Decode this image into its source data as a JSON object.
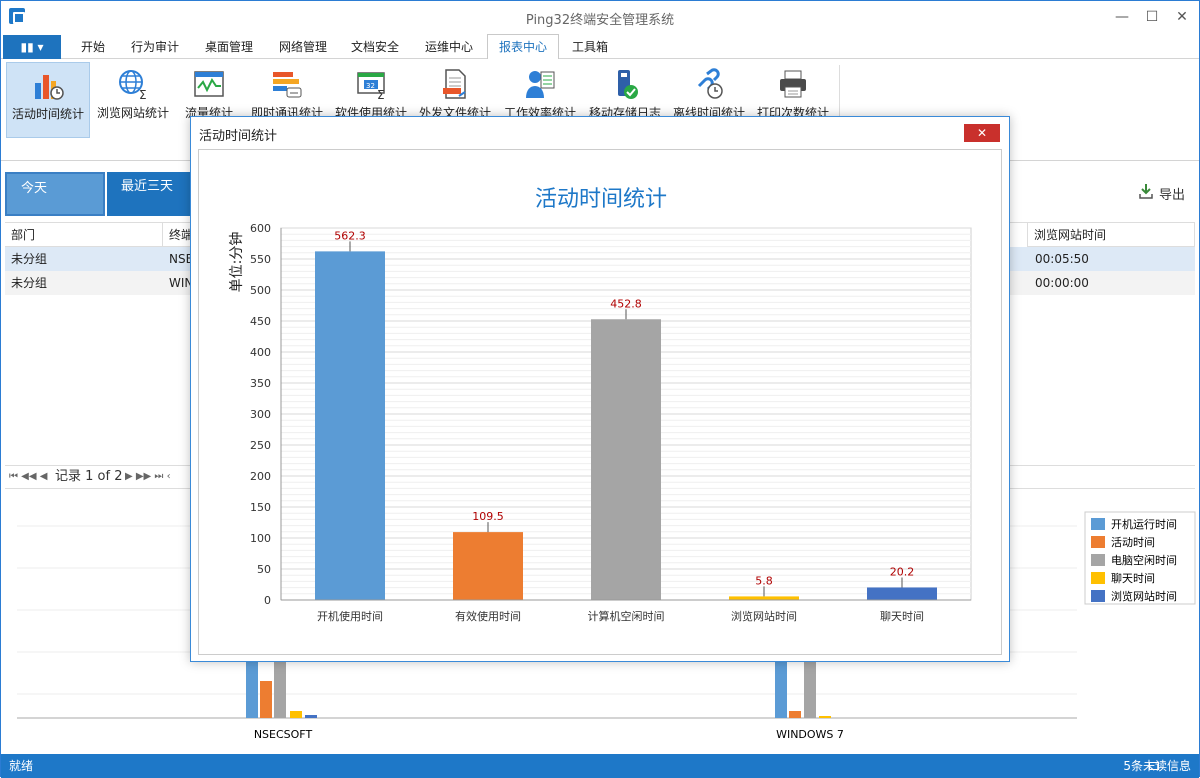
{
  "window": {
    "title": "Ping32终端安全管理系统",
    "min": "—",
    "max": "☐",
    "close": "✕"
  },
  "menu": {
    "tabs": [
      "开始",
      "行为审计",
      "桌面管理",
      "网络管理",
      "文档安全",
      "运维中心",
      "报表中心",
      "工具箱"
    ],
    "active": 6
  },
  "ribbon": {
    "items": [
      {
        "label": "活动时间统计",
        "icon": "activity-time-icon"
      },
      {
        "label": "浏览网站统计",
        "icon": "web-browse-icon"
      },
      {
        "label": "流量统计",
        "icon": "traffic-icon"
      },
      {
        "label": "即时通讯统计",
        "icon": "im-icon"
      },
      {
        "label": "软件使用统计",
        "icon": "software-icon"
      },
      {
        "label": "外发文件统计",
        "icon": "outgoing-file-icon"
      },
      {
        "label": "工作效率统计",
        "icon": "efficiency-icon"
      },
      {
        "label": "移动存储日志",
        "icon": "usb-storage-icon"
      },
      {
        "label": "离线时间统计",
        "icon": "offline-time-icon"
      },
      {
        "label": "打印次数统计",
        "icon": "print-icon"
      }
    ]
  },
  "filters": {
    "tabs": [
      "今天",
      "最近三天"
    ],
    "export_label": "导出"
  },
  "grid": {
    "columns": [
      "部门",
      "终端",
      "浏览网站时间"
    ],
    "rows": [
      {
        "dept": "未分组",
        "terminal": "NSE",
        "web_time": "00:05:50"
      },
      {
        "dept": "未分组",
        "terminal": "WIN",
        "web_time": "00:00:00"
      }
    ]
  },
  "pager": {
    "text": "记录 1 of 2"
  },
  "bottom_chart": {
    "legend": [
      "开机运行时间",
      "活动时间",
      "电脑空闲时间",
      "聊天时间",
      "浏览网站时间"
    ],
    "categories": [
      "NSECSOFT",
      "WINDOWS 7"
    ]
  },
  "status": {
    "left": "就绪",
    "right": "5条未读信息"
  },
  "modal": {
    "title": "活动时间统计",
    "close": "✕"
  },
  "chart_data": {
    "type": "bar",
    "title": "活动时间统计",
    "ylabel": "单位:分钟",
    "categories": [
      "开机使用时间",
      "有效使用时间",
      "计算机空闲时间",
      "浏览网站时间",
      "聊天时间"
    ],
    "values": [
      562.3,
      109.5,
      452.8,
      5.8,
      20.2
    ],
    "value_labels": [
      "562.3",
      "109.5",
      "452.8",
      "5.8",
      "20.2"
    ],
    "colors": [
      "#5b9bd5",
      "#ed7d31",
      "#a5a5a5",
      "#ffc000",
      "#4472c4"
    ],
    "ylim": [
      0,
      600
    ],
    "yticks": [
      0,
      50,
      100,
      150,
      200,
      250,
      300,
      350,
      400,
      450,
      500,
      550,
      600
    ],
    "grid": true
  }
}
